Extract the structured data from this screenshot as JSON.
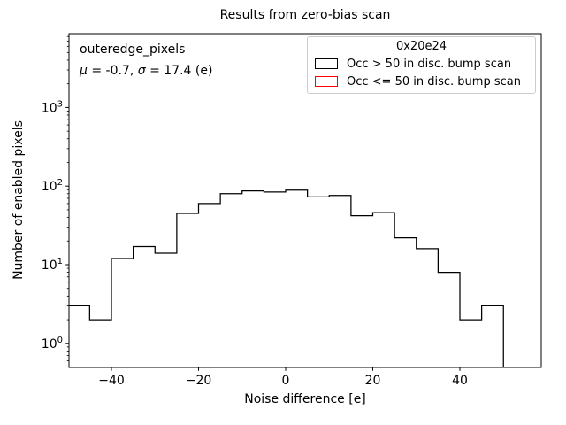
{
  "figure": {
    "title": "Results from zero-bias scan",
    "xlabel": "Noise difference [e]",
    "ylabel": "Number of enabled pixels",
    "annotation": {
      "name": "outeredge_pixels",
      "stats_parts": [
        {
          "text": "μ",
          "italic": true
        },
        {
          "text": " = -0.7, ",
          "italic": false
        },
        {
          "text": "σ",
          "italic": true
        },
        {
          "text": " = 17.4 (e)",
          "italic": false
        }
      ]
    },
    "legend": {
      "title": "0x20e24",
      "entries": [
        {
          "label": "Occ > 50 in disc. bump scan",
          "color": "#000000"
        },
        {
          "label": "Occ <= 50 in disc. bump scan",
          "color": "#ff0000"
        }
      ]
    }
  },
  "chart_data": {
    "type": "histogram",
    "title": "Results from zero-bias scan",
    "xlabel": "Noise difference [e]",
    "ylabel": "Number of enabled pixels",
    "yscale": "log",
    "xlim": [
      -49.8,
      58.7
    ],
    "ylim": [
      0.49,
      8700
    ],
    "grid": false,
    "legend_position": "upper right",
    "bin_edges": [
      -50,
      -45,
      -40,
      -35,
      -30,
      -25,
      -20,
      -15,
      -10,
      -5,
      0,
      5,
      10,
      15,
      20,
      25,
      30,
      35,
      40,
      45,
      50
    ],
    "series": [
      {
        "name": "Occ > 50 in disc. bump scan",
        "color": "#000000",
        "counts": [
          3,
          2,
          12,
          17,
          14,
          45,
          60,
          80,
          87,
          84,
          89,
          73,
          76,
          42,
          46,
          22,
          16,
          8,
          2,
          3
        ]
      },
      {
        "name": "Occ <= 50 in disc. bump scan",
        "color": "#ff0000",
        "counts": []
      }
    ],
    "stats": {
      "mu": -0.7,
      "sigma": 17.4,
      "unit": "e"
    },
    "x_ticks": [
      {
        "value": -40,
        "label": "−40"
      },
      {
        "value": -20,
        "label": "−20"
      },
      {
        "value": 0,
        "label": "0"
      },
      {
        "value": 20,
        "label": "20"
      },
      {
        "value": 40,
        "label": "40"
      }
    ],
    "y_ticks": [
      {
        "exponent": 0,
        "label": "10⁰"
      },
      {
        "exponent": 1,
        "label": "10¹"
      },
      {
        "exponent": 2,
        "label": "10²"
      },
      {
        "exponent": 3,
        "label": "10³"
      }
    ]
  }
}
